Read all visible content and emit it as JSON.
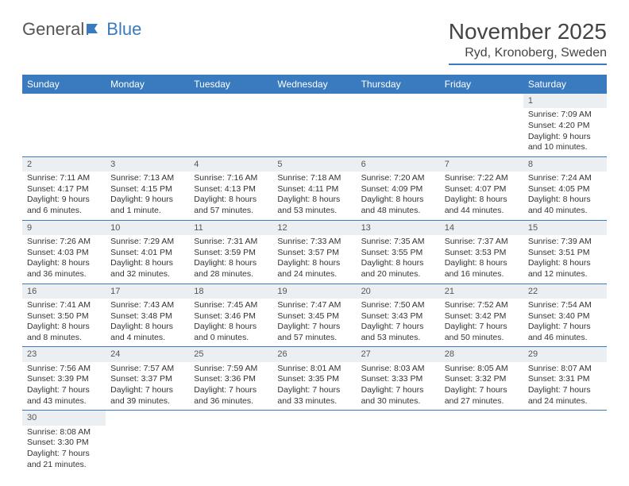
{
  "logo": {
    "general": "General",
    "blue": "Blue"
  },
  "title": "November 2025",
  "location": "Ryd, Kronoberg, Sweden",
  "header_bg": "#3a7bbf",
  "days_of_week": [
    "Sunday",
    "Monday",
    "Tuesday",
    "Wednesday",
    "Thursday",
    "Friday",
    "Saturday"
  ],
  "weeks": [
    [
      null,
      null,
      null,
      null,
      null,
      null,
      {
        "n": "1",
        "sunrise": "Sunrise: 7:09 AM",
        "sunset": "Sunset: 4:20 PM",
        "daylight": "Daylight: 9 hours and 10 minutes."
      }
    ],
    [
      {
        "n": "2",
        "sunrise": "Sunrise: 7:11 AM",
        "sunset": "Sunset: 4:17 PM",
        "daylight": "Daylight: 9 hours and 6 minutes."
      },
      {
        "n": "3",
        "sunrise": "Sunrise: 7:13 AM",
        "sunset": "Sunset: 4:15 PM",
        "daylight": "Daylight: 9 hours and 1 minute."
      },
      {
        "n": "4",
        "sunrise": "Sunrise: 7:16 AM",
        "sunset": "Sunset: 4:13 PM",
        "daylight": "Daylight: 8 hours and 57 minutes."
      },
      {
        "n": "5",
        "sunrise": "Sunrise: 7:18 AM",
        "sunset": "Sunset: 4:11 PM",
        "daylight": "Daylight: 8 hours and 53 minutes."
      },
      {
        "n": "6",
        "sunrise": "Sunrise: 7:20 AM",
        "sunset": "Sunset: 4:09 PM",
        "daylight": "Daylight: 8 hours and 48 minutes."
      },
      {
        "n": "7",
        "sunrise": "Sunrise: 7:22 AM",
        "sunset": "Sunset: 4:07 PM",
        "daylight": "Daylight: 8 hours and 44 minutes."
      },
      {
        "n": "8",
        "sunrise": "Sunrise: 7:24 AM",
        "sunset": "Sunset: 4:05 PM",
        "daylight": "Daylight: 8 hours and 40 minutes."
      }
    ],
    [
      {
        "n": "9",
        "sunrise": "Sunrise: 7:26 AM",
        "sunset": "Sunset: 4:03 PM",
        "daylight": "Daylight: 8 hours and 36 minutes."
      },
      {
        "n": "10",
        "sunrise": "Sunrise: 7:29 AM",
        "sunset": "Sunset: 4:01 PM",
        "daylight": "Daylight: 8 hours and 32 minutes."
      },
      {
        "n": "11",
        "sunrise": "Sunrise: 7:31 AM",
        "sunset": "Sunset: 3:59 PM",
        "daylight": "Daylight: 8 hours and 28 minutes."
      },
      {
        "n": "12",
        "sunrise": "Sunrise: 7:33 AM",
        "sunset": "Sunset: 3:57 PM",
        "daylight": "Daylight: 8 hours and 24 minutes."
      },
      {
        "n": "13",
        "sunrise": "Sunrise: 7:35 AM",
        "sunset": "Sunset: 3:55 PM",
        "daylight": "Daylight: 8 hours and 20 minutes."
      },
      {
        "n": "14",
        "sunrise": "Sunrise: 7:37 AM",
        "sunset": "Sunset: 3:53 PM",
        "daylight": "Daylight: 8 hours and 16 minutes."
      },
      {
        "n": "15",
        "sunrise": "Sunrise: 7:39 AM",
        "sunset": "Sunset: 3:51 PM",
        "daylight": "Daylight: 8 hours and 12 minutes."
      }
    ],
    [
      {
        "n": "16",
        "sunrise": "Sunrise: 7:41 AM",
        "sunset": "Sunset: 3:50 PM",
        "daylight": "Daylight: 8 hours and 8 minutes."
      },
      {
        "n": "17",
        "sunrise": "Sunrise: 7:43 AM",
        "sunset": "Sunset: 3:48 PM",
        "daylight": "Daylight: 8 hours and 4 minutes."
      },
      {
        "n": "18",
        "sunrise": "Sunrise: 7:45 AM",
        "sunset": "Sunset: 3:46 PM",
        "daylight": "Daylight: 8 hours and 0 minutes."
      },
      {
        "n": "19",
        "sunrise": "Sunrise: 7:47 AM",
        "sunset": "Sunset: 3:45 PM",
        "daylight": "Daylight: 7 hours and 57 minutes."
      },
      {
        "n": "20",
        "sunrise": "Sunrise: 7:50 AM",
        "sunset": "Sunset: 3:43 PM",
        "daylight": "Daylight: 7 hours and 53 minutes."
      },
      {
        "n": "21",
        "sunrise": "Sunrise: 7:52 AM",
        "sunset": "Sunset: 3:42 PM",
        "daylight": "Daylight: 7 hours and 50 minutes."
      },
      {
        "n": "22",
        "sunrise": "Sunrise: 7:54 AM",
        "sunset": "Sunset: 3:40 PM",
        "daylight": "Daylight: 7 hours and 46 minutes."
      }
    ],
    [
      {
        "n": "23",
        "sunrise": "Sunrise: 7:56 AM",
        "sunset": "Sunset: 3:39 PM",
        "daylight": "Daylight: 7 hours and 43 minutes."
      },
      {
        "n": "24",
        "sunrise": "Sunrise: 7:57 AM",
        "sunset": "Sunset: 3:37 PM",
        "daylight": "Daylight: 7 hours and 39 minutes."
      },
      {
        "n": "25",
        "sunrise": "Sunrise: 7:59 AM",
        "sunset": "Sunset: 3:36 PM",
        "daylight": "Daylight: 7 hours and 36 minutes."
      },
      {
        "n": "26",
        "sunrise": "Sunrise: 8:01 AM",
        "sunset": "Sunset: 3:35 PM",
        "daylight": "Daylight: 7 hours and 33 minutes."
      },
      {
        "n": "27",
        "sunrise": "Sunrise: 8:03 AM",
        "sunset": "Sunset: 3:33 PM",
        "daylight": "Daylight: 7 hours and 30 minutes."
      },
      {
        "n": "28",
        "sunrise": "Sunrise: 8:05 AM",
        "sunset": "Sunset: 3:32 PM",
        "daylight": "Daylight: 7 hours and 27 minutes."
      },
      {
        "n": "29",
        "sunrise": "Sunrise: 8:07 AM",
        "sunset": "Sunset: 3:31 PM",
        "daylight": "Daylight: 7 hours and 24 minutes."
      }
    ],
    [
      {
        "n": "30",
        "sunrise": "Sunrise: 8:08 AM",
        "sunset": "Sunset: 3:30 PM",
        "daylight": "Daylight: 7 hours and 21 minutes."
      },
      null,
      null,
      null,
      null,
      null,
      null
    ]
  ]
}
